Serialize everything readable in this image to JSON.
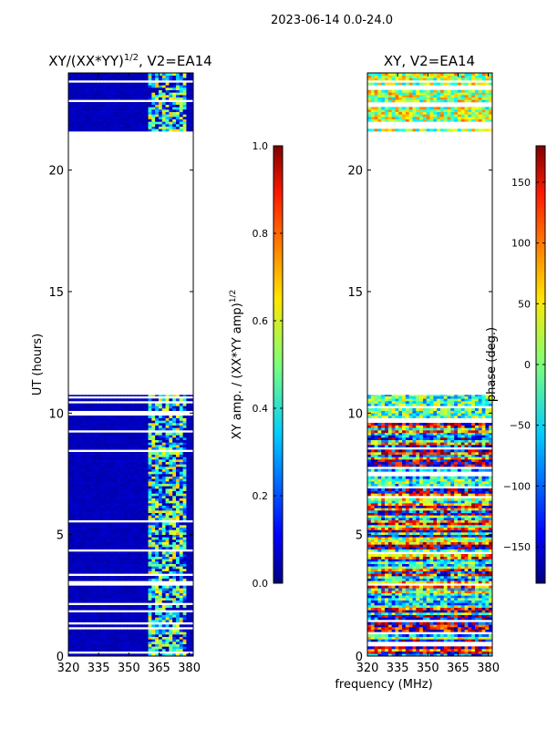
{
  "suptitle": "2023-06-14 0.0-24.0",
  "chart_data": [
    {
      "type": "heatmap",
      "title": "XY/(XX*YY)",
      "title_exponent": "1/2",
      "title_suffix": ", V2=EA14",
      "xlabel": "",
      "ylabel": "UT (hours)",
      "xlim": [
        320,
        382
      ],
      "ylim": [
        0,
        24
      ],
      "xticks": [
        "320",
        "335",
        "350",
        "365",
        "380"
      ],
      "xtick_values": [
        320,
        335,
        350,
        365,
        380
      ],
      "yticks": [
        "0",
        "5",
        "10",
        "15",
        "20"
      ],
      "ytick_values": [
        0,
        5,
        10,
        15,
        20
      ],
      "data_ranges_ut": [
        [
          0.0,
          10.75
        ],
        [
          21.6,
          24.0
        ]
      ],
      "bright_band_mhz": [
        360,
        378
      ],
      "colormap": "jet",
      "colorbar": {
        "label": "XY amp. / (XX*YY amp)",
        "label_exponent": "1/2",
        "range": [
          0.0,
          1.0
        ],
        "ticks": [
          "0.0",
          "0.2",
          "0.4",
          "0.6",
          "0.8",
          "1.0"
        ],
        "tick_values": [
          0.0,
          0.2,
          0.4,
          0.6,
          0.8,
          1.0
        ]
      }
    },
    {
      "type": "heatmap",
      "title": "XY, V2=EA14",
      "xlabel": "frequency (MHz)",
      "ylabel": "",
      "xlim": [
        320,
        382
      ],
      "ylim": [
        0,
        24
      ],
      "xticks": [
        "320",
        "335",
        "350",
        "365",
        "380"
      ],
      "xtick_values": [
        320,
        335,
        350,
        365,
        380
      ],
      "yticks": [
        "0",
        "5",
        "10",
        "15",
        "20"
      ],
      "ytick_values": [
        0,
        5,
        10,
        15,
        20
      ],
      "data_ranges_ut": [
        [
          0.0,
          10.75
        ],
        [
          21.6,
          24.0
        ]
      ],
      "colormap": "jet",
      "colorbar": {
        "label": "phase (deg.)",
        "range": [
          -180,
          180
        ],
        "ticks": [
          "−150",
          "−100",
          "−50",
          "0",
          "50",
          "100",
          "150"
        ],
        "tick_values": [
          -150,
          -100,
          -50,
          0,
          50,
          100,
          150
        ]
      }
    }
  ]
}
